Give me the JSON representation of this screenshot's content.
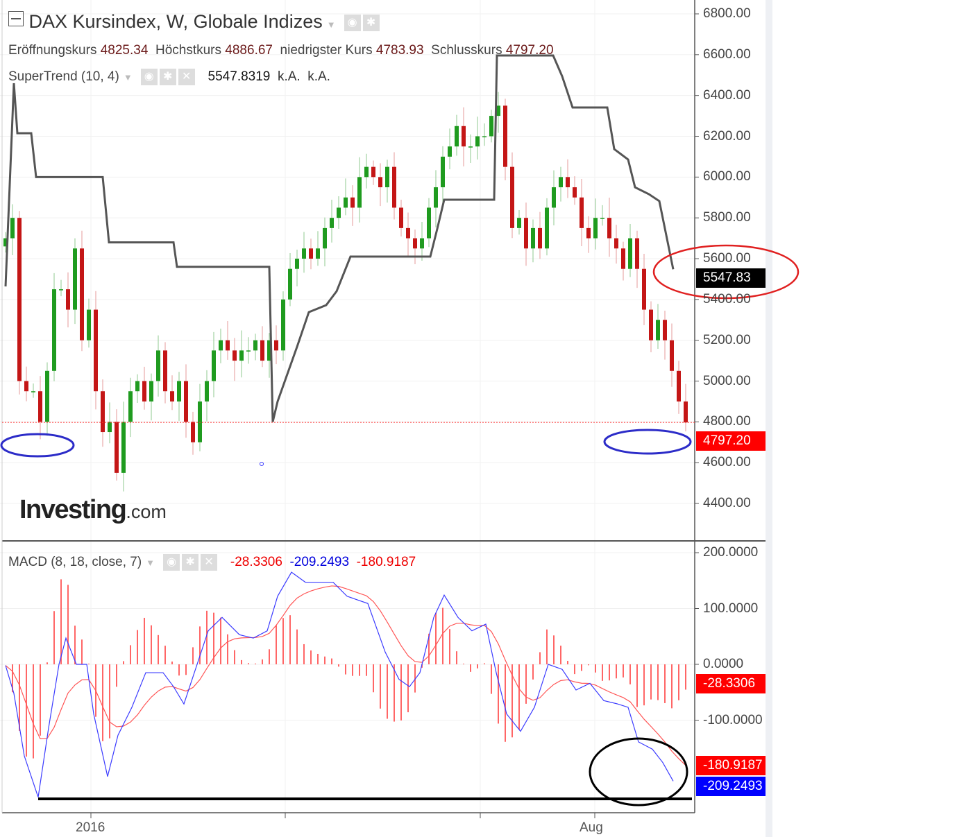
{
  "header": {
    "title": "DAX Kursindex, W, Globale Indizes",
    "ohlc": [
      {
        "label": "Eröffnungskurs",
        "value": "4825.34"
      },
      {
        "label": "Höchstkurs",
        "value": "4886.67"
      },
      {
        "label": "niedrigster Kurs",
        "value": "4783.93"
      },
      {
        "label": "Schlusskurs",
        "value": "4797.20"
      }
    ],
    "supertrend": {
      "label": "SuperTrend (10, 4)",
      "value": "5547.8319",
      "v2": "k.A.",
      "v3": "k.A."
    },
    "macd": {
      "label": "MACD (8, 18, close, 7)",
      "hist": "-28.3306",
      "macd": "-209.2493",
      "signal": "-180.9187"
    }
  },
  "logo": {
    "brand": "Investing",
    "suffix": ".com"
  },
  "colors": {
    "up": "#1f9b1f",
    "down": "#c41616",
    "supertrend": "#555555",
    "macd": "#3b3bff",
    "signal": "#ff5555",
    "hist": "#ff6666",
    "price_tag": "#ff0000",
    "st_tag": "#000000",
    "macd_tag": "#0000ff"
  },
  "chart_data": [
    {
      "type": "candlestick",
      "title": "DAX Kursindex, W, Globale Indizes",
      "ylim": [
        4300,
        6850
      ],
      "yticks": [
        "6800.00",
        "6600.00",
        "6400.00",
        "6200.00",
        "6000.00",
        "5800.00",
        "5600.00",
        "5400.00",
        "5200.00",
        "5000.00",
        "4800.00",
        "4600.00",
        "4400.00"
      ],
      "xticks": [
        "2016",
        "",
        "",
        "Aug"
      ],
      "closes": [
        5700,
        5800,
        5000,
        4950,
        4950,
        4800,
        5050,
        5450,
        5450,
        5350,
        5650,
        5200,
        5350,
        4950,
        4750,
        4800,
        4550,
        4800,
        4950,
        5000,
        4900,
        5000,
        5150,
        4950,
        4900,
        5000,
        4800,
        4700,
        4900,
        5000,
        5150,
        5200,
        5150,
        5100,
        5150,
        5150,
        5200,
        5100,
        5200,
        5150,
        5400,
        5550,
        5600,
        5650,
        5600,
        5650,
        5750,
        5800,
        5850,
        5900,
        5850,
        6000,
        6050,
        6000,
        5950,
        6050,
        5850,
        5750,
        5700,
        5650,
        5700,
        5850,
        5950,
        6100,
        6150,
        6250,
        6150,
        6150,
        6200,
        6200,
        6300,
        6350,
        6050,
        5750,
        5800,
        5650,
        5750,
        5650,
        5850,
        5950,
        6000,
        5950,
        5900,
        5750,
        5700,
        5800,
        5800,
        5700,
        5650,
        5550,
        5700,
        5550,
        5350,
        5200,
        5300,
        5200,
        5050,
        4900,
        4797.2
      ],
      "last": {
        "open": "4825.34",
        "high": "4886.67",
        "low": "4783.93",
        "close": "4797.20"
      },
      "supertrend": [
        [
          0,
          5464
        ],
        [
          1.2,
          6460
        ],
        [
          1.7,
          6215
        ],
        [
          3.7,
          6215
        ],
        [
          4.4,
          6000
        ],
        [
          14,
          6000
        ],
        [
          14.9,
          5680
        ],
        [
          24.2,
          5680
        ],
        [
          24.7,
          5560
        ],
        [
          38,
          5560
        ],
        [
          38.5,
          4800
        ],
        [
          39.2,
          4900
        ],
        [
          42,
          5168
        ],
        [
          43.7,
          5338
        ],
        [
          46.2,
          5372
        ],
        [
          47.7,
          5440
        ],
        [
          49.7,
          5610
        ],
        [
          61.2,
          5610
        ],
        [
          62.2,
          5746
        ],
        [
          63.2,
          5889
        ],
        [
          70.4,
          5889
        ],
        [
          70.8,
          6596
        ],
        [
          78.9,
          6596
        ],
        [
          80.2,
          6494
        ],
        [
          81.7,
          6341
        ],
        [
          86.7,
          6341
        ],
        [
          87.7,
          6137
        ],
        [
          89.7,
          6086
        ],
        [
          90.7,
          5950
        ],
        [
          92.7,
          5916
        ],
        [
          94.2,
          5882
        ],
        [
          96.2,
          5548
        ]
      ],
      "supertrend_last": "5547.83",
      "close_label": "4797.20"
    },
    {
      "type": "line",
      "title": "MACD (8, 18, close, 7)",
      "ylim": [
        -240,
        200
      ],
      "yticks": [
        "200.0000",
        "100.0000",
        "0.0000",
        "-100.0000"
      ],
      "macd": [
        [
          0,
          -2
        ],
        [
          1.2,
          -52
        ],
        [
          2.7,
          -164
        ],
        [
          4.7,
          -238
        ],
        [
          6.2,
          -114
        ],
        [
          7.7,
          0
        ],
        [
          8.7,
          47
        ],
        [
          10.2,
          0
        ],
        [
          11.7,
          0
        ],
        [
          12.7,
          -89
        ],
        [
          14.7,
          -201
        ],
        [
          16.2,
          -127
        ],
        [
          18.2,
          -77
        ],
        [
          20.2,
          -15
        ],
        [
          22.7,
          -15
        ],
        [
          24.2,
          -40
        ],
        [
          25.7,
          -71
        ],
        [
          27.2,
          -15
        ],
        [
          29.2,
          60
        ],
        [
          31.2,
          84
        ],
        [
          33.7,
          53
        ],
        [
          35.7,
          47
        ],
        [
          37.7,
          60
        ],
        [
          39.2,
          122
        ],
        [
          41.2,
          165
        ],
        [
          43.2,
          147
        ],
        [
          47.2,
          147
        ],
        [
          49.2,
          122
        ],
        [
          52.2,
          109
        ],
        [
          54.7,
          22
        ],
        [
          56.7,
          -27
        ],
        [
          58.2,
          -40
        ],
        [
          59.7,
          -15
        ],
        [
          61.7,
          84
        ],
        [
          63.2,
          124
        ],
        [
          65.2,
          84
        ],
        [
          67.2,
          60
        ],
        [
          69.2,
          72
        ],
        [
          70.7,
          -15
        ],
        [
          72.2,
          -89
        ],
        [
          74.2,
          -120
        ],
        [
          76.2,
          -77
        ],
        [
          78.2,
          0
        ],
        [
          80.2,
          -9
        ],
        [
          82.2,
          -46
        ],
        [
          84.2,
          -34
        ],
        [
          86.2,
          -65
        ],
        [
          88.2,
          -71
        ],
        [
          89.7,
          -77
        ],
        [
          91.2,
          -139
        ],
        [
          93.2,
          -152
        ],
        [
          94.7,
          -176
        ],
        [
          96.2,
          -209.2493
        ]
      ],
      "labels": {
        "hist": "-28.3306",
        "signal": "-180.9187",
        "macd": "-209.2493"
      }
    }
  ]
}
